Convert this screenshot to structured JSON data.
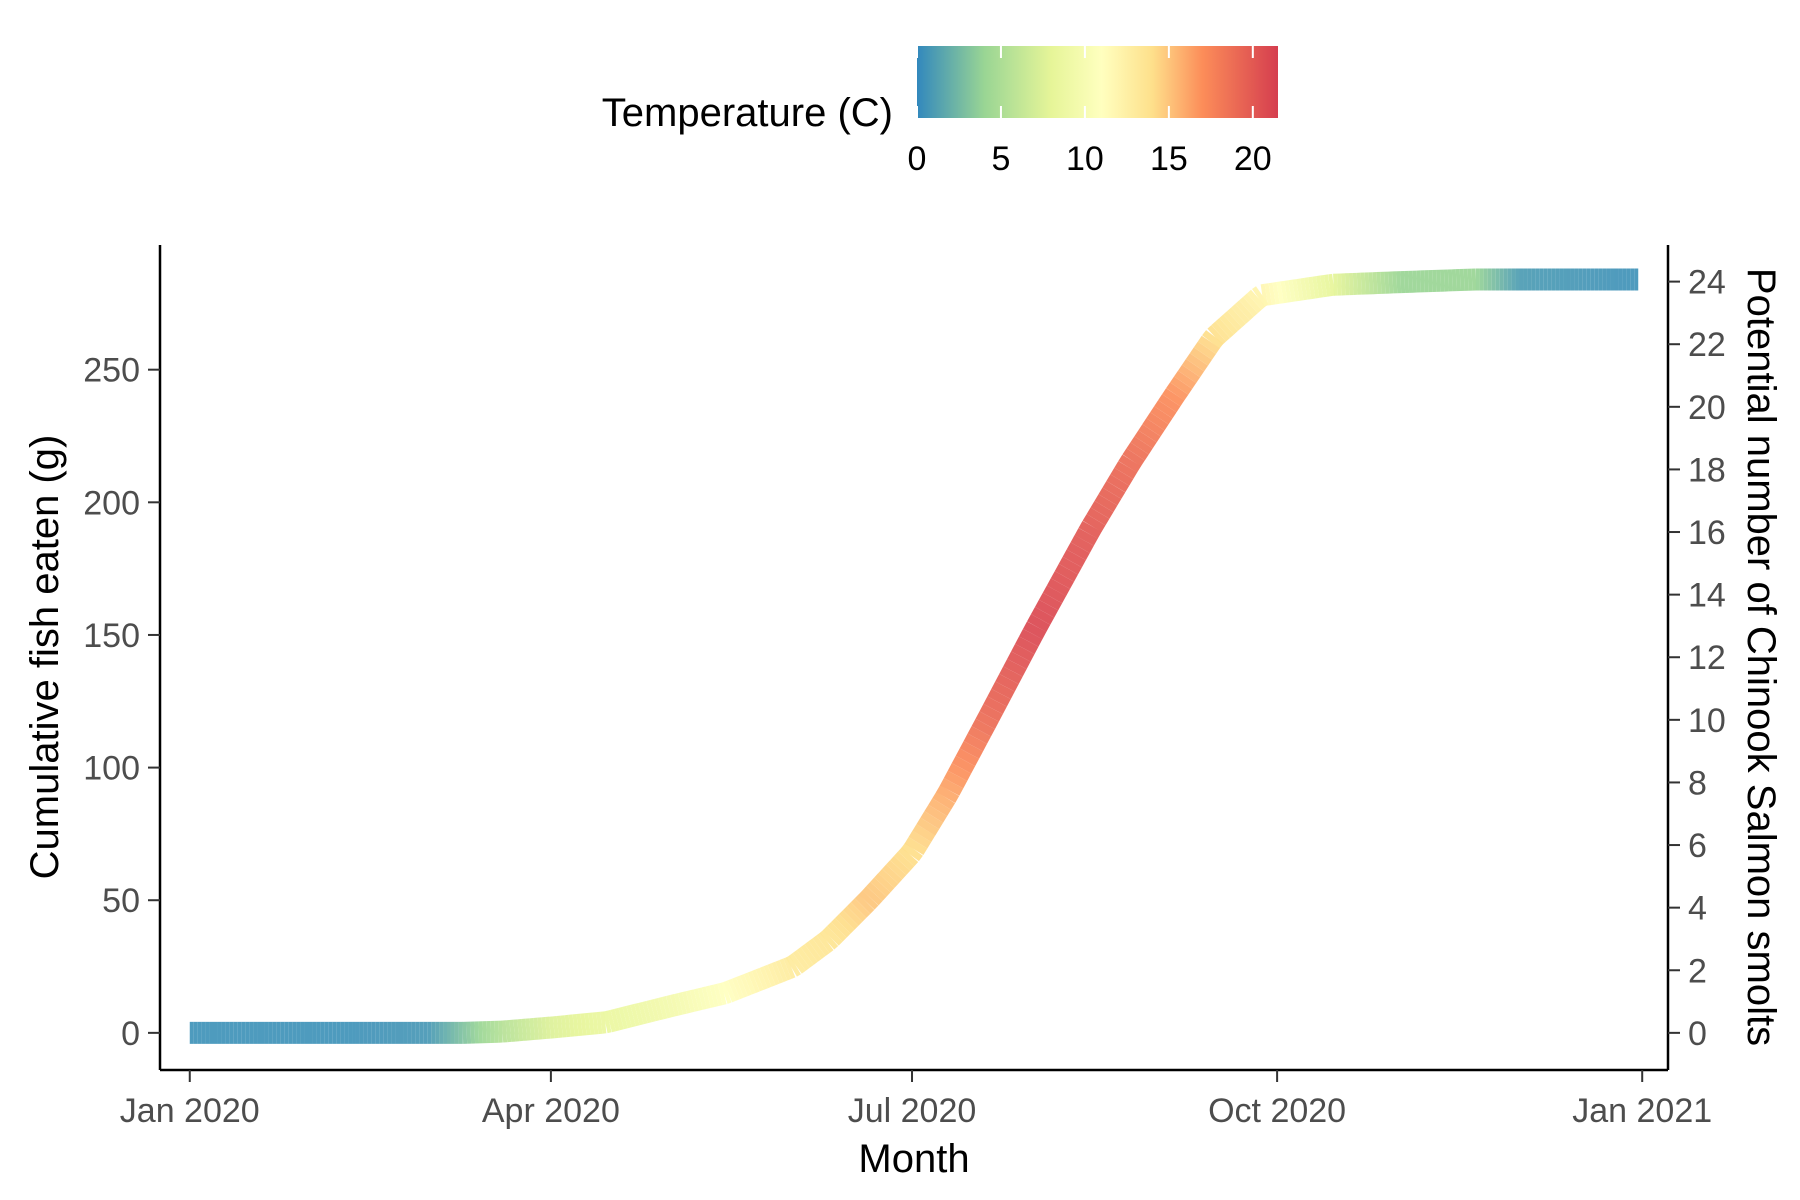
{
  "chart_data": {
    "type": "line",
    "title": "",
    "xlabel": "Month",
    "ylabel": "Cumulative fish eaten (g)",
    "y2label": "Potential number of Chinook Salmon smolts",
    "x_ticks": [
      "Jan 2020",
      "Apr 2020",
      "Jul 2020",
      "Oct 2020",
      "Jan 2021"
    ],
    "y_ticks": [
      0,
      50,
      100,
      150,
      200,
      250
    ],
    "y2_ticks": [
      0,
      2,
      4,
      6,
      8,
      10,
      12,
      14,
      16,
      18,
      20,
      22,
      24
    ],
    "xlim": [
      "2020-01-01",
      "2020-12-31"
    ],
    "ylim": [
      -14,
      297
    ],
    "y2_scale_per_unit": 11.8,
    "grid": false,
    "legend": {
      "title": "Temperature (C)",
      "placement": "top",
      "type": "colorbar",
      "ticks": [
        0,
        5,
        10,
        15,
        20
      ],
      "range": [
        0,
        21.5
      ],
      "colors": [
        {
          "t": 0,
          "color": "#3288bd"
        },
        {
          "t": 4,
          "color": "#99d594"
        },
        {
          "t": 8,
          "color": "#e6f598"
        },
        {
          "t": 11,
          "color": "#ffffbf"
        },
        {
          "t": 14,
          "color": "#fee08b"
        },
        {
          "t": 17,
          "color": "#fc8d59"
        },
        {
          "t": 21.5,
          "color": "#d53e4f"
        }
      ]
    },
    "series": [
      {
        "points": [
          {
            "x": "2020-01-01",
            "y": 0,
            "temp": 0.5
          },
          {
            "x": "2020-01-20",
            "y": 0,
            "temp": 0.5
          },
          {
            "x": "2020-02-10",
            "y": 0,
            "temp": 0.5
          },
          {
            "x": "2020-03-01",
            "y": 0,
            "temp": 0.8
          },
          {
            "x": "2020-03-10",
            "y": 0,
            "temp": 3
          },
          {
            "x": "2020-03-20",
            "y": 0.5,
            "temp": 5.5
          },
          {
            "x": "2020-04-01",
            "y": 2,
            "temp": 7.5
          },
          {
            "x": "2020-04-15",
            "y": 4,
            "temp": 8.5
          },
          {
            "x": "2020-05-01",
            "y": 10,
            "temp": 9.5
          },
          {
            "x": "2020-05-15",
            "y": 15,
            "temp": 11
          },
          {
            "x": "2020-06-01",
            "y": 25,
            "temp": 13
          },
          {
            "x": "2020-06-10",
            "y": 35,
            "temp": 13.5
          },
          {
            "x": "2020-06-20",
            "y": 50,
            "temp": 15
          },
          {
            "x": "2020-07-01",
            "y": 68,
            "temp": 14
          },
          {
            "x": "2020-07-10",
            "y": 90,
            "temp": 16
          },
          {
            "x": "2020-07-20",
            "y": 118,
            "temp": 19
          },
          {
            "x": "2020-08-01",
            "y": 152,
            "temp": 21
          },
          {
            "x": "2020-08-15",
            "y": 190,
            "temp": 20
          },
          {
            "x": "2020-08-25",
            "y": 215,
            "temp": 19
          },
          {
            "x": "2020-09-05",
            "y": 240,
            "temp": 17
          },
          {
            "x": "2020-09-15",
            "y": 262,
            "temp": 14
          },
          {
            "x": "2020-09-27",
            "y": 278,
            "temp": 12
          },
          {
            "x": "2020-10-15",
            "y": 282,
            "temp": 8
          },
          {
            "x": "2020-11-01",
            "y": 283,
            "temp": 4
          },
          {
            "x": "2020-11-20",
            "y": 284,
            "temp": 4
          },
          {
            "x": "2020-12-01",
            "y": 284,
            "temp": 1
          },
          {
            "x": "2020-12-31",
            "y": 284,
            "temp": 0.5
          }
        ]
      }
    ]
  }
}
